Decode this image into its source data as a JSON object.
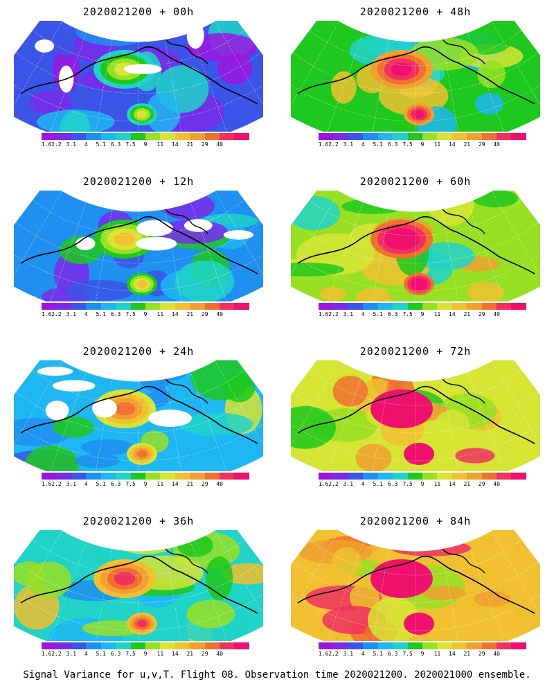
{
  "panels": [
    {
      "title": "2020021200 + 00h",
      "lead": 0
    },
    {
      "title": "2020021200 + 48h",
      "lead": 48
    },
    {
      "title": "2020021200 + 12h",
      "lead": 12
    },
    {
      "title": "2020021200 + 60h",
      "lead": 60
    },
    {
      "title": "2020021200 + 24h",
      "lead": 24
    },
    {
      "title": "2020021200 + 72h",
      "lead": 72
    },
    {
      "title": "2020021200 + 36h",
      "lead": 36
    },
    {
      "title": "2020021200 + 84h",
      "lead": 84
    }
  ],
  "scale": {
    "labels": [
      "1.6",
      "2.2",
      "3.1",
      "4",
      "5.1",
      "6.3",
      "7.5",
      "9",
      "11",
      "14",
      "21",
      "29",
      "40"
    ],
    "colors": [
      "#9a16e0",
      "#7a2bea",
      "#3b55e8",
      "#1f8ff0",
      "#1fb7f2",
      "#20d2c8",
      "#1ec81e",
      "#97e024",
      "#d6e434",
      "#f0c030",
      "#f0a030",
      "#f07030",
      "#f03060",
      "#f0106e"
    ]
  },
  "footer": "Signal Variance for u,v,T. Flight 08. Observation time 2020021200. 2020021000 ensemble."
}
